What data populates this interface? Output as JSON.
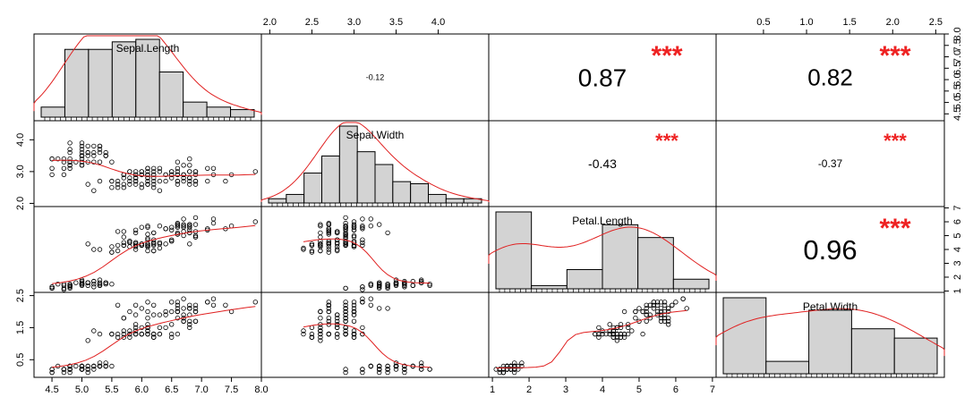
{
  "chart_data": {
    "type": "scatter",
    "title": "",
    "variables": [
      "Sepal.Length",
      "Sepal.Width",
      "Petal.Length",
      "Petal.Width"
    ],
    "ranges": [
      [
        4.2,
        8.0
      ],
      [
        1.9,
        4.6
      ],
      [
        0.9,
        7.1
      ],
      [
        -0.05,
        2.6
      ]
    ],
    "ticks": [
      [
        "4.5",
        "5.0",
        "5.5",
        "6.0",
        "6.5",
        "7.0",
        "7.5",
        "8.0"
      ],
      [
        "2.0",
        "2.5",
        "3.0",
        "3.5",
        "4.0"
      ],
      [
        "1",
        "2",
        "3",
        "4",
        "5",
        "6",
        "7"
      ],
      [
        "0.5",
        "1.0",
        "1.5",
        "2.0",
        "2.5"
      ]
    ],
    "left_ticks": {
      "sepal_width": [
        "2.0",
        "3.0",
        "4.0"
      ],
      "petal_width": [
        "0.5",
        "1.5",
        "2.5"
      ]
    },
    "correlations": [
      {
        "row": 0,
        "col": 1,
        "value": "-0.12",
        "stars": ""
      },
      {
        "row": 0,
        "col": 2,
        "value": "0.87",
        "stars": "***"
      },
      {
        "row": 0,
        "col": 3,
        "value": "0.82",
        "stars": "***"
      },
      {
        "row": 1,
        "col": 2,
        "value": "-0.43",
        "stars": "***"
      },
      {
        "row": 1,
        "col": 3,
        "value": "-0.37",
        "stars": "***"
      },
      {
        "row": 2,
        "col": 3,
        "value": "0.96",
        "stars": "***"
      }
    ],
    "histograms": [
      {
        "breaks": [
          4.2,
          4.6,
          5.0,
          5.4,
          5.8,
          6.2,
          6.6,
          7.0,
          7.4,
          7.8
        ],
        "counts": [
          4,
          27,
          27,
          30,
          31,
          18,
          6,
          4,
          3
        ]
      },
      {
        "breaks": [
          2.0,
          2.2,
          2.4,
          2.6,
          2.8,
          3.0,
          3.2,
          3.4,
          3.6,
          3.8,
          4.0,
          4.2,
          4.4
        ],
        "counts": [
          2,
          4,
          14,
          22,
          36,
          24,
          18,
          10,
          9,
          4,
          2,
          2
        ]
      },
      {
        "breaks": [
          1,
          2,
          3,
          4,
          5,
          6,
          7
        ],
        "counts": [
          48,
          2,
          12,
          40,
          32,
          6
        ]
      },
      {
        "breaks": [
          0,
          0.5,
          1.0,
          1.5,
          2.0,
          2.5
        ],
        "counts": [
          49,
          8,
          41,
          29,
          23
        ]
      }
    ],
    "colors": {
      "hist_fill": "#d3d3d3",
      "smooth_line": "#e02020",
      "stars": "#ee2222",
      "points": "#000000"
    },
    "grid": false
  }
}
